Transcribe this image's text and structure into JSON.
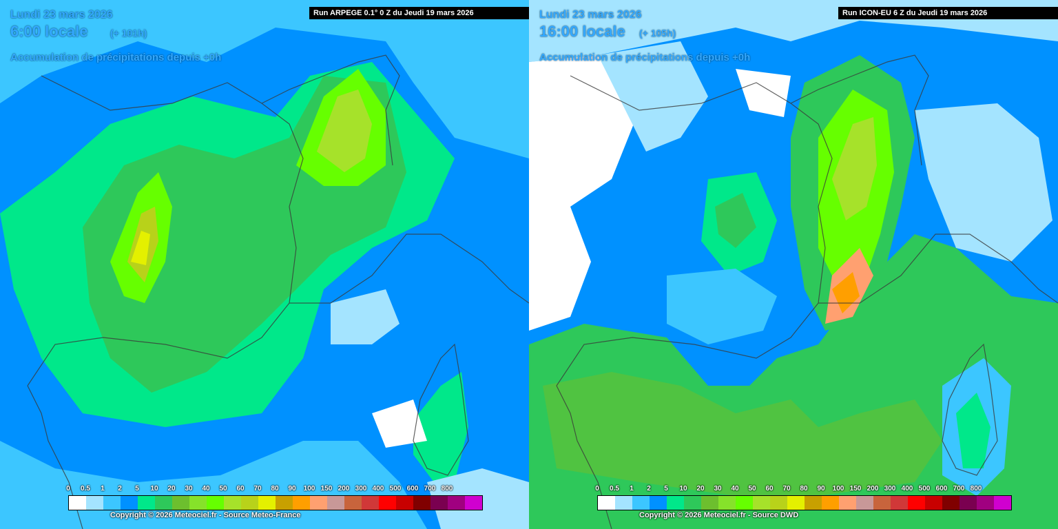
{
  "panels": [
    {
      "date": "Lundi 23 mars 2026",
      "time": "6:00 locale",
      "lead": "(+ 101h)",
      "accum": "Accumulation de précipitations depuis +0h",
      "run": "Run ARPEGE 0.1° 0 Z du Jeudi 19 mars 2026",
      "copyright": "Copyright © 2026 Meteociel.fr - Source Meteo-France"
    },
    {
      "date": "Lundi 23 mars 2026",
      "time": "16:00 locale",
      "lead": "(+ 105h)",
      "accum": "Accumulation de précipitations depuis +0h",
      "run": "Run ICON-EU 6 Z du Jeudi 19 mars 2026",
      "copyright": "Copyright © 2026 Meteociel.fr - Source DWD"
    }
  ],
  "legend": {
    "labels": [
      "0",
      "0.5",
      "1",
      "2",
      "5",
      "10",
      "20",
      "30",
      "40",
      "50",
      "60",
      "70",
      "80",
      "90",
      "100",
      "150",
      "200",
      "300",
      "400",
      "500",
      "600",
      "700",
      "800"
    ],
    "colors": [
      "#ffffff",
      "#a4e4ff",
      "#3cc6ff",
      "#0091ff",
      "#00e88a",
      "#2ec85a",
      "#6dbf2e",
      "#86e22a",
      "#66ff00",
      "#a6e22a",
      "#b8d21a",
      "#e4f000",
      "#c8a000",
      "#ff9f00",
      "#ffa070",
      "#c89898",
      "#c8643c",
      "#d03838",
      "#ff0000",
      "#c80000",
      "#800000",
      "#7a0050",
      "#a00080",
      "#d000d0"
    ]
  }
}
